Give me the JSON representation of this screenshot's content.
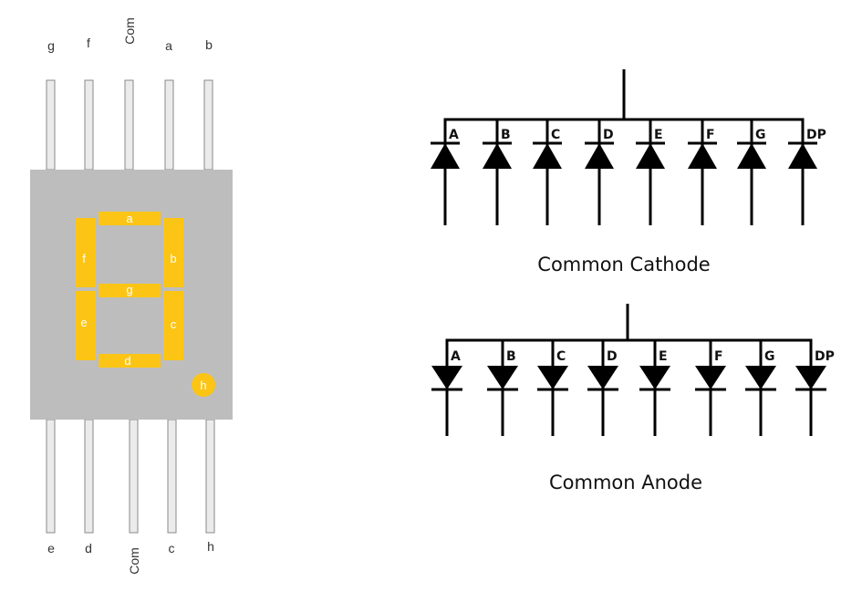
{
  "colors": {
    "body": "#bdbdbd",
    "segment": "#fcc515",
    "pin": "#ebebeb",
    "pin_stroke": "#888888",
    "wire": "#000000"
  },
  "display": {
    "top_pins": [
      "g",
      "f",
      "Com",
      "a",
      "b"
    ],
    "bottom_pins": [
      "e",
      "d",
      "Com",
      "c",
      "h"
    ],
    "segments": [
      "a",
      "b",
      "c",
      "d",
      "e",
      "f",
      "g"
    ],
    "decimal_point": "h"
  },
  "common_cathode": {
    "title": "Common Cathode",
    "labels": [
      "A",
      "B",
      "C",
      "D",
      "E",
      "F",
      "G",
      "DP"
    ]
  },
  "common_anode": {
    "title": "Common Anode",
    "labels": [
      "A",
      "B",
      "C",
      "D",
      "E",
      "F",
      "G",
      "DP"
    ]
  }
}
